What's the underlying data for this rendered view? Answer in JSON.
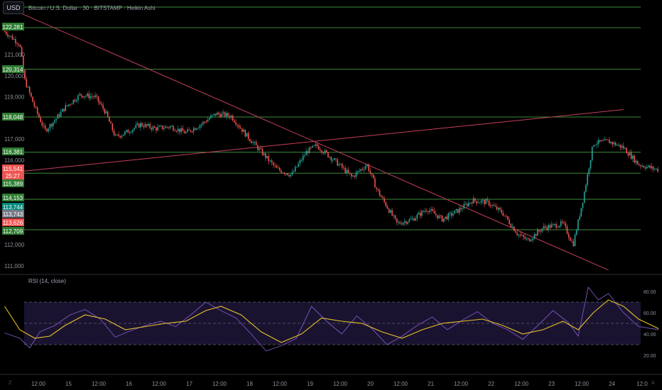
{
  "header": {
    "currency_button": "USD",
    "symbol_title": "Bitcoin / U.S. Dollar · 30 · BITSTAMP · Heikin Ashi"
  },
  "rsi": {
    "label": "RSI (14, close)",
    "levels": [
      "80.00",
      "60.00",
      "40.00",
      "20.00"
    ]
  },
  "corner_icons": {
    "left": "z-icon",
    "right": "auto-scale-icon"
  },
  "chart_data": [
    {
      "type": "candlestick",
      "style": "Heikin Ashi",
      "ylim": [
        110600,
        122900
      ],
      "y_ticks": [
        "121,000",
        "120,000",
        "119,000",
        "117,000",
        "116,000",
        "112,000",
        "111,000"
      ],
      "horizontal_levels": [
        {
          "label": "122,281",
          "value": 122281
        },
        {
          "label": "120,314",
          "value": 120314
        },
        {
          "label": "118,048",
          "value": 118048
        },
        {
          "label": "116,381",
          "value": 116381
        },
        {
          "label": "115,389",
          "value": 115389
        },
        {
          "label": "114,153",
          "value": 114153
        },
        {
          "label": "112,709",
          "value": 112709
        }
      ],
      "top_line": true,
      "price_tags": [
        {
          "label": "122,281",
          "value": 122281,
          "kind": "level"
        },
        {
          "label": "120,314",
          "value": 120314,
          "kind": "level"
        },
        {
          "label": "118,048",
          "value": 118048,
          "kind": "level"
        },
        {
          "label": "116,381",
          "value": 116381,
          "kind": "level"
        },
        {
          "label": "115,541",
          "value": 115541,
          "kind": "last"
        },
        {
          "label": "25:27",
          "value": 115250,
          "kind": "countdown"
        },
        {
          "label": "115,389",
          "value": 115389,
          "kind": "level"
        },
        {
          "label": "114,153",
          "value": 114153,
          "kind": "level"
        },
        {
          "label": "113,744",
          "value": 113744,
          "kind": "teal"
        },
        {
          "label": "113,743",
          "value": 113743,
          "kind": "grey"
        },
        {
          "label": "113,626",
          "value": 113626,
          "kind": "red"
        },
        {
          "label": "112,709",
          "value": 112709,
          "kind": "level"
        }
      ],
      "x_ticks": [
        "12:00",
        "15",
        "12:00",
        "16",
        "12:00",
        "17",
        "12:00",
        "18",
        "12:00",
        "19",
        "12:00",
        "20",
        "12:00",
        "21",
        "12:00",
        "22",
        "12:00",
        "23",
        "12:00",
        "24",
        "12:0"
      ],
      "trendlines": [
        {
          "from": [
            "Jul 14 00:00",
            123300
          ],
          "to": [
            "Jul 24 00:00",
            110800
          ]
        },
        {
          "from": [
            "Jul 14 00:00",
            115390
          ],
          "to": [
            "Jul 24 06:00",
            118400
          ]
        }
      ],
      "price_path": [
        [
          "Jul 14 00:00",
          122100
        ],
        [
          "Jul 14 06:00",
          121500
        ],
        [
          "Jul 14 08:00",
          119800
        ],
        [
          "Jul 14 12:00",
          118500
        ],
        [
          "Jul 14 16:00",
          117400
        ],
        [
          "Jul 14 20:00",
          117900
        ],
        [
          "Jul 15 00:00",
          118500
        ],
        [
          "Jul 15 06:00",
          119100
        ],
        [
          "Jul 15 12:00",
          119000
        ],
        [
          "Jul 15 16:00",
          118300
        ],
        [
          "Jul 15 20:00",
          117100
        ],
        [
          "Jul 16 00:00",
          117300
        ],
        [
          "Jul 16 06:00",
          117700
        ],
        [
          "Jul 16 12:00",
          117500
        ],
        [
          "Jul 16 18:00",
          117600
        ],
        [
          "Jul 17 00:00",
          117300
        ],
        [
          "Jul 17 06:00",
          117700
        ],
        [
          "Jul 17 12:00",
          118200
        ],
        [
          "Jul 17 18:00",
          118100
        ],
        [
          "Jul 18 00:00",
          117200
        ],
        [
          "Jul 18 06:00",
          116400
        ],
        [
          "Jul 18 12:00",
          115600
        ],
        [
          "Jul 18 18:00",
          115300
        ],
        [
          "Jul 19 00:00",
          116400
        ],
        [
          "Jul 19 04:00",
          116700
        ],
        [
          "Jul 19 12:00",
          115900
        ],
        [
          "Jul 19 18:00",
          115200
        ],
        [
          "Jul 20 00:00",
          115800
        ],
        [
          "Jul 20 04:00",
          114600
        ],
        [
          "Jul 20 12:00",
          113000
        ],
        [
          "Jul 20 18:00",
          113200
        ],
        [
          "Jul 21 00:00",
          113700
        ],
        [
          "Jul 21 06:00",
          113200
        ],
        [
          "Jul 21 12:00",
          113600
        ],
        [
          "Jul 21 18:00",
          114100
        ],
        [
          "Jul 22 00:00",
          114000
        ],
        [
          "Jul 22 06:00",
          113500
        ],
        [
          "Jul 22 12:00",
          112500
        ],
        [
          "Jul 22 16:00",
          112200
        ],
        [
          "Jul 22 22:00",
          112800
        ],
        [
          "Jul 23 06:00",
          113000
        ],
        [
          "Jul 23 10:00",
          112000
        ],
        [
          "Jul 23 14:00",
          114200
        ],
        [
          "Jul 23 18:00",
          116800
        ],
        [
          "Jul 24 00:00",
          116900
        ],
        [
          "Jul 24 06:00",
          116600
        ],
        [
          "Jul 24 12:00",
          115800
        ],
        [
          "Jul 24 20:00",
          115541
        ]
      ]
    },
    {
      "type": "line",
      "title": "RSI (14, close)",
      "ylim": [
        10,
        90
      ],
      "bands": [
        30,
        50,
        70
      ],
      "y_ticks": [
        "80.00",
        "60.00",
        "40.00",
        "20.00"
      ],
      "series": [
        {
          "color": "#7e57c2",
          "points": [
            [
              "Jul 14 00:00",
              41
            ],
            [
              "Jul 14 06:00",
              36
            ],
            [
              "Jul 14 10:00",
              27
            ],
            [
              "Jul 14 14:00",
              42
            ],
            [
              "Jul 14 20:00",
              48
            ],
            [
              "Jul 15 02:00",
              58
            ],
            [
              "Jul 15 08:00",
              63
            ],
            [
              "Jul 15 14:00",
              54
            ],
            [
              "Jul 15 20:00",
              37
            ],
            [
              "Jul 16 02:00",
              43
            ],
            [
              "Jul 16 08:00",
              48
            ],
            [
              "Jul 16 14:00",
              52
            ],
            [
              "Jul 16 20:00",
              47
            ],
            [
              "Jul 17 02:00",
              58
            ],
            [
              "Jul 17 08:00",
              70
            ],
            [
              "Jul 17 14:00",
              62
            ],
            [
              "Jul 17 20:00",
              55
            ],
            [
              "Jul 18 02:00",
              40
            ],
            [
              "Jul 18 08:00",
              24
            ],
            [
              "Jul 18 14:00",
              29
            ],
            [
              "Jul 18 20:00",
              36
            ],
            [
              "Jul 19 02:00",
              66
            ],
            [
              "Jul 19 08:00",
              52
            ],
            [
              "Jul 19 14:00",
              40
            ],
            [
              "Jul 19 20:00",
              57
            ],
            [
              "Jul 20 02:00",
              45
            ],
            [
              "Jul 20 08:00",
              30
            ],
            [
              "Jul 20 14:00",
              38
            ],
            [
              "Jul 20 20:00",
              48
            ],
            [
              "Jul 21 02:00",
              56
            ],
            [
              "Jul 21 08:00",
              44
            ],
            [
              "Jul 21 14:00",
              53
            ],
            [
              "Jul 21 20:00",
              61
            ],
            [
              "Jul 22 02:00",
              50
            ],
            [
              "Jul 22 08:00",
              44
            ],
            [
              "Jul 22 14:00",
              35
            ],
            [
              "Jul 22 20:00",
              48
            ],
            [
              "Jul 23 02:00",
              62
            ],
            [
              "Jul 23 08:00",
              51
            ],
            [
              "Jul 23 12:00",
              38
            ],
            [
              "Jul 23 16:00",
              84
            ],
            [
              "Jul 23 20:00",
              72
            ],
            [
              "Jul 24 00:00",
              78
            ],
            [
              "Jul 24 06:00",
              60
            ],
            [
              "Jul 24 12:00",
              47
            ],
            [
              "Jul 24 20:00",
              44
            ]
          ]
        },
        {
          "color": "#e6c229",
          "points": [
            [
              "Jul 14 00:00",
              66
            ],
            [
              "Jul 14 06:00",
              44
            ],
            [
              "Jul 14 12:00",
              36
            ],
            [
              "Jul 14 18:00",
              38
            ],
            [
              "Jul 15 00:00",
              48
            ],
            [
              "Jul 15 08:00",
              58
            ],
            [
              "Jul 15 16:00",
              54
            ],
            [
              "Jul 16 00:00",
              44
            ],
            [
              "Jul 16 08:00",
              47
            ],
            [
              "Jul 16 16:00",
              50
            ],
            [
              "Jul 17 00:00",
              52
            ],
            [
              "Jul 17 08:00",
              62
            ],
            [
              "Jul 17 14:00",
              66
            ],
            [
              "Jul 17 22:00",
              58
            ],
            [
              "Jul 18 06:00",
              42
            ],
            [
              "Jul 18 14:00",
              32
            ],
            [
              "Jul 18 22:00",
              40
            ],
            [
              "Jul 19 06:00",
              55
            ],
            [
              "Jul 19 14:00",
              52
            ],
            [
              "Jul 19 22:00",
              50
            ],
            [
              "Jul 20 06:00",
              42
            ],
            [
              "Jul 20 14:00",
              36
            ],
            [
              "Jul 20 22:00",
              44
            ],
            [
              "Jul 21 06:00",
              50
            ],
            [
              "Jul 21 14:00",
              52
            ],
            [
              "Jul 21 22:00",
              54
            ],
            [
              "Jul 22 06:00",
              48
            ],
            [
              "Jul 22 14:00",
              40
            ],
            [
              "Jul 22 22:00",
              44
            ],
            [
              "Jul 23 06:00",
              52
            ],
            [
              "Jul 23 12:00",
              44
            ],
            [
              "Jul 23 18:00",
              60
            ],
            [
              "Jul 24 00:00",
              72
            ],
            [
              "Jul 24 06:00",
              66
            ],
            [
              "Jul 24 12:00",
              54
            ],
            [
              "Jul 24 20:00",
              45
            ]
          ]
        }
      ]
    }
  ]
}
